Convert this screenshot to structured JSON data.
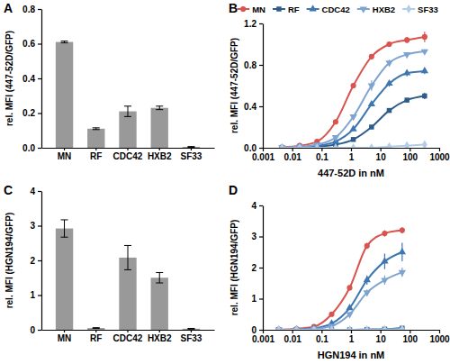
{
  "chart_data": [
    {
      "type": "bar",
      "title": "A",
      "y_label": "rel. MFI (447-52D/GFP)",
      "categories": [
        "MN",
        "RF",
        "CDC42",
        "HXB2",
        "SF33"
      ],
      "values": [
        0.61,
        0.11,
        0.21,
        0.23,
        0.005
      ],
      "errors": [
        0.005,
        0.005,
        0.03,
        0.01,
        0.002
      ],
      "color": "#999999",
      "ylim": [
        0,
        0.8
      ],
      "yticks": [
        {
          "value": 0,
          "label": "0.0"
        },
        {
          "value": 0.2,
          "label": "0.2"
        },
        {
          "value": 0.4,
          "label": "0.4"
        },
        {
          "value": 0.6,
          "label": "0.6"
        },
        {
          "value": 0.8,
          "label": "0.8"
        }
      ]
    },
    {
      "type": "line",
      "title": "B",
      "x_label": "447-52D in nM",
      "y_label": "rel. MFI (447-52D/GFP)",
      "log": "x",
      "legend": "top",
      "x": [
        0.0045,
        0.018,
        0.07,
        0.3,
        1.2,
        5,
        20,
        80,
        320
      ],
      "series": [
        {
          "name": "MN",
          "color": "#d9534f",
          "marker": "circle",
          "values": [
            0.005,
            0.02,
            0.06,
            0.25,
            0.6,
            0.88,
            1.0,
            1.04,
            1.07
          ],
          "errors": [
            0,
            0,
            0,
            0.01,
            0.02,
            0.02,
            0.02,
            0.03,
            0.05
          ]
        },
        {
          "name": "RF",
          "color": "#2e5c8a",
          "marker": "square",
          "values": [
            0.0,
            0.0,
            0.01,
            0.03,
            0.08,
            0.2,
            0.36,
            0.46,
            0.5
          ],
          "errors": [
            0,
            0,
            0,
            0,
            0.01,
            0.01,
            0.02,
            0.02,
            0.03
          ]
        },
        {
          "name": "CDC42",
          "color": "#3d76b0",
          "marker": "triangle",
          "values": [
            0.0,
            0.005,
            0.02,
            0.06,
            0.18,
            0.42,
            0.62,
            0.72,
            0.74
          ],
          "errors": [
            0,
            0,
            0,
            0,
            0.01,
            0.02,
            0.03,
            0.03,
            0.03
          ]
        },
        {
          "name": "HXB2",
          "color": "#7fa3d1",
          "marker": "triangle-down",
          "values": [
            0.0,
            0.01,
            0.03,
            0.1,
            0.3,
            0.6,
            0.82,
            0.9,
            0.93
          ],
          "errors": [
            0,
            0,
            0,
            0.01,
            0.02,
            0.05,
            0.03,
            0.02,
            0.02
          ]
        },
        {
          "name": "SF33",
          "color": "#b3cde8",
          "marker": "diamond",
          "values": [
            0,
            0,
            0,
            0,
            0,
            0,
            0.01,
            0.02,
            0.03
          ],
          "errors": [
            0,
            0,
            0,
            0,
            0,
            0,
            0,
            0,
            0
          ]
        }
      ],
      "xlim": [
        0.001,
        1000
      ],
      "xticks": [
        0.001,
        0.01,
        0.1,
        1,
        10,
        100,
        1000
      ],
      "ylim": [
        0,
        1.2
      ],
      "yticks": [
        {
          "value": 0,
          "label": "0.0"
        },
        {
          "value": 0.4,
          "label": "0.4"
        },
        {
          "value": 0.8,
          "label": "0.8"
        },
        {
          "value": 1.2,
          "label": "1.2"
        }
      ]
    },
    {
      "type": "bar",
      "title": "C",
      "y_label": "rel. MFI (HGN194/GFP)",
      "categories": [
        "MN",
        "RF",
        "CDC42",
        "HXB2",
        "SF33"
      ],
      "values": [
        2.92,
        0.05,
        2.08,
        1.5,
        0.03
      ],
      "errors": [
        0.25,
        0.01,
        0.35,
        0.15,
        0.01
      ],
      "color": "#999999",
      "ylim": [
        0,
        4
      ],
      "yticks": [
        0,
        1,
        2,
        3,
        4
      ]
    },
    {
      "type": "line",
      "title": "D",
      "x_label": "HGN194 in nM",
      "y_label": "rel. MFI (HGN194/GFP)",
      "log": "x",
      "x": [
        0.0035,
        0.014,
        0.055,
        0.22,
        0.9,
        3.5,
        14,
        55
      ],
      "series": [
        {
          "name": "MN",
          "color": "#d9534f",
          "marker": "circle",
          "values": [
            0.01,
            0.03,
            0.1,
            0.5,
            1.35,
            2.7,
            3.1,
            3.2
          ],
          "errors": [
            0,
            0,
            0,
            0.03,
            0.08,
            0.1,
            0.1,
            0.1
          ]
        },
        {
          "name": "RF",
          "color": "#2e5c8a",
          "marker": "square",
          "values": [
            0,
            0,
            0,
            0,
            0,
            0.01,
            0.02,
            0.05
          ],
          "errors": [
            0,
            0,
            0,
            0,
            0,
            0,
            0,
            0
          ]
        },
        {
          "name": "CDC42",
          "color": "#3d76b0",
          "marker": "triangle",
          "values": [
            0,
            0.01,
            0.05,
            0.2,
            0.7,
            1.6,
            2.2,
            2.5
          ],
          "errors": [
            0,
            0,
            0,
            0.02,
            0.05,
            0.15,
            0.25,
            0.3
          ]
        },
        {
          "name": "HXB2",
          "color": "#7fa3d1",
          "marker": "triangle-down",
          "values": [
            0,
            0.01,
            0.03,
            0.12,
            0.5,
            1.2,
            1.6,
            1.85
          ],
          "errors": [
            0,
            0,
            0,
            0.02,
            0.05,
            0.1,
            0.15,
            0.15
          ]
        },
        {
          "name": "SF33",
          "color": "#b3cde8",
          "marker": "diamond",
          "values": [
            0,
            0,
            0,
            0,
            0,
            0,
            0.01,
            0.02
          ],
          "errors": [
            0,
            0,
            0,
            0,
            0,
            0,
            0,
            0
          ]
        }
      ],
      "xlim": [
        0.001,
        1000
      ],
      "xticks": [
        0.001,
        0.01,
        0.1,
        1,
        10,
        100,
        1000
      ],
      "ylim": [
        0,
        4
      ],
      "yticks": [
        0,
        1,
        2,
        3,
        4
      ]
    }
  ]
}
